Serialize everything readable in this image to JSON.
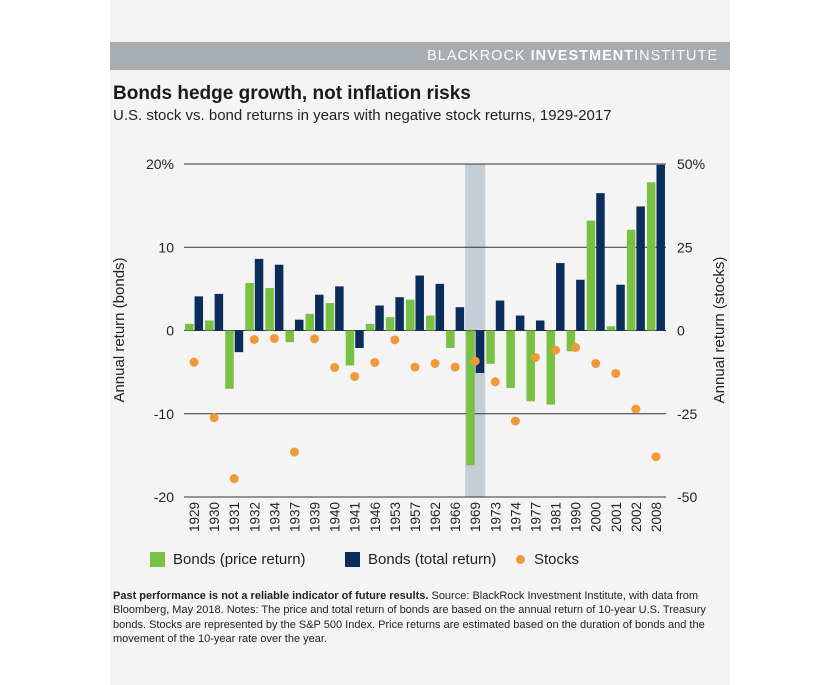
{
  "header": {
    "brand_light": "BLACKROCK",
    "brand_bold": "INVESTMENT",
    "brand_end": "INSTITUTE"
  },
  "title": "Bonds hedge growth, not inflation risks",
  "subtitle": "U.S. stock vs. bond returns in years with negative stock returns, 1929-2017",
  "legend": {
    "bonds_price": "Bonds (price return)",
    "bonds_total": "Bonds (total return)",
    "stocks": "Stocks"
  },
  "footnote": {
    "bold": "Past performance is not a reliable indicator of future results.",
    "text": " Source: BlackRock Investment Institute, with data from Bloomberg, May 2018. Notes: The price and total return of bonds are based on the annual return of 10-year U.S. Treasury bonds. Stocks are represented by the S&P 500 Index. Price returns are estimated based on the duration of bonds and the movement of the 10-year rate over the year."
  },
  "colors": {
    "bonds_price": "#79c143",
    "bonds_total": "#0c2d5c",
    "stocks": "#ef9a3a",
    "highlight": "#c5ced5",
    "header": "#a7adb1"
  },
  "chart_data": {
    "type": "bar",
    "categories": [
      "1929",
      "1930",
      "1931",
      "1932",
      "1934",
      "1937",
      "1939",
      "1940",
      "1941",
      "1946",
      "1953",
      "1957",
      "1962",
      "1966",
      "1969",
      "1973",
      "1974",
      "1977",
      "1981",
      "1990",
      "2000",
      "2001",
      "2002",
      "2008"
    ],
    "highlight_category": "1969",
    "left_axis": {
      "label": "Annual return (bonds)",
      "ylim": [
        -20,
        20
      ],
      "ticks": [
        20,
        10,
        0,
        -10,
        -20
      ],
      "tick_labels": [
        "20%",
        "10",
        "0",
        "-10",
        "-20"
      ]
    },
    "right_axis": {
      "label": "Annual return (stocks)",
      "ylim": [
        -50,
        50
      ],
      "ticks": [
        50,
        25,
        0,
        -25,
        -50
      ],
      "tick_labels": [
        "50%",
        "25",
        "0",
        "-25",
        "-50"
      ]
    },
    "grid": true,
    "series": [
      {
        "name": "Bonds (price return)",
        "axis": "left",
        "mark": "bar",
        "values": [
          0.8,
          1.2,
          -7,
          5.7,
          5.1,
          -1.4,
          2.0,
          3.3,
          -4.2,
          0.8,
          1.6,
          3.7,
          1.8,
          -2.1,
          -16.2,
          -4.0,
          -6.9,
          -8.5,
          -8.9,
          -2.5,
          13.2,
          0.5,
          12.1,
          17.8
        ]
      },
      {
        "name": "Bonds (total return)",
        "axis": "left",
        "mark": "bar",
        "values": [
          4.1,
          4.4,
          -2.6,
          8.6,
          7.9,
          1.3,
          4.3,
          5.3,
          -2.1,
          3.0,
          4.0,
          6.6,
          5.6,
          2.8,
          -5.1,
          3.6,
          1.8,
          1.2,
          8.1,
          6.1,
          16.5,
          5.5,
          14.9,
          19.9
        ]
      },
      {
        "name": "Stocks",
        "axis": "right",
        "mark": "point",
        "values": [
          -9.5,
          -26.2,
          -44.5,
          -2.7,
          -2.4,
          -36.5,
          -2.5,
          -11.1,
          -13.8,
          -9.6,
          -2.8,
          -11.0,
          -9.9,
          -11.0,
          -9.2,
          -15.4,
          -27.2,
          -8.1,
          -5.9,
          -5.1,
          -9.9,
          -12.9,
          -23.6,
          -37.9
        ]
      }
    ]
  }
}
